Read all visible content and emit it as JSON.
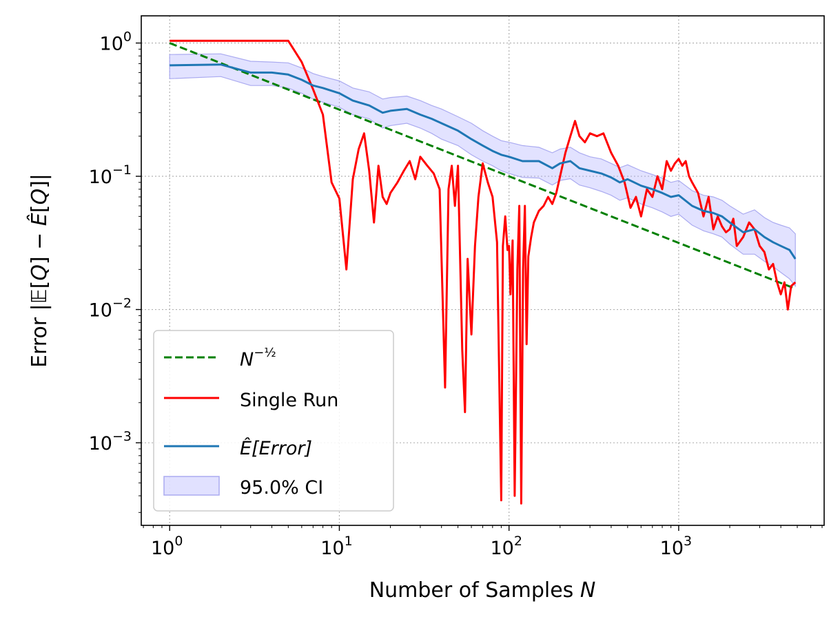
{
  "chart_data": {
    "type": "line",
    "xlabel": "Number of Samples N",
    "ylabel": "Error |𝔼[Q] − Ê[Q]|",
    "xscale": "log",
    "yscale": "log",
    "xlim": [
      0.68,
      7200
    ],
    "ylim": [
      0.00024,
      1.6
    ],
    "grid": true,
    "legend_placement": "lower-left",
    "x_ticks": [
      {
        "base": "10",
        "exp": "0"
      },
      {
        "base": "10",
        "exp": "1"
      },
      {
        "base": "10",
        "exp": "2"
      },
      {
        "base": "10",
        "exp": "3"
      }
    ],
    "y_ticks": [
      {
        "base": "10",
        "exp": "−3"
      },
      {
        "base": "10",
        "exp": "−2"
      },
      {
        "base": "10",
        "exp": "−1"
      },
      {
        "base": "10",
        "exp": "0"
      }
    ],
    "series": [
      {
        "name": "N^(-1/2)",
        "legend_base": "N",
        "legend_exp": "−½",
        "color": "#008000",
        "style": "dashed",
        "x": [
          1,
          4870
        ],
        "y": [
          1.0,
          0.01433
        ]
      },
      {
        "name": "Single Run",
        "color": "#ff0000",
        "style": "solid",
        "x": [
          1,
          2,
          5,
          6,
          7,
          8,
          9,
          10,
          11,
          12,
          13,
          14,
          15,
          16,
          17,
          18,
          19,
          20,
          22,
          24,
          26,
          28,
          30,
          33,
          36,
          39,
          42,
          44,
          46,
          48,
          50,
          53,
          55,
          57,
          60,
          63,
          66,
          70,
          75,
          80,
          85,
          90,
          92,
          95,
          98,
          100,
          102,
          105,
          108,
          112,
          115,
          118,
          121,
          124,
          127,
          130,
          135,
          140,
          150,
          160,
          170,
          180,
          190,
          200,
          215,
          230,
          245,
          260,
          280,
          300,
          330,
          360,
          400,
          440,
          480,
          520,
          560,
          600,
          650,
          700,
          750,
          800,
          850,
          900,
          950,
          1000,
          1050,
          1100,
          1150,
          1200,
          1300,
          1400,
          1500,
          1600,
          1700,
          1800,
          1900,
          2000,
          2100,
          2200,
          2400,
          2600,
          2800,
          3000,
          3200,
          3400,
          3600,
          3800,
          4000,
          4200,
          4400,
          4600,
          4870
        ],
        "y": [
          1.04,
          1.04,
          1.04,
          0.72,
          0.45,
          0.29,
          0.09,
          0.068,
          0.02,
          0.095,
          0.16,
          0.21,
          0.11,
          0.045,
          0.12,
          0.07,
          0.062,
          0.075,
          0.09,
          0.11,
          0.13,
          0.095,
          0.14,
          0.12,
          0.105,
          0.08,
          0.0026,
          0.08,
          0.12,
          0.06,
          0.12,
          0.005,
          0.0017,
          0.024,
          0.0065,
          0.03,
          0.07,
          0.125,
          0.09,
          0.07,
          0.032,
          0.00037,
          0.03,
          0.05,
          0.028,
          0.03,
          0.013,
          0.033,
          0.0004,
          0.02,
          0.06,
          0.00035,
          0.02,
          0.06,
          0.0055,
          0.025,
          0.035,
          0.045,
          0.055,
          0.06,
          0.07,
          0.062,
          0.075,
          0.1,
          0.15,
          0.2,
          0.26,
          0.2,
          0.18,
          0.21,
          0.2,
          0.21,
          0.15,
          0.12,
          0.09,
          0.058,
          0.07,
          0.05,
          0.08,
          0.07,
          0.1,
          0.08,
          0.13,
          0.11,
          0.125,
          0.135,
          0.12,
          0.13,
          0.1,
          0.09,
          0.075,
          0.05,
          0.07,
          0.04,
          0.05,
          0.042,
          0.038,
          0.04,
          0.048,
          0.03,
          0.035,
          0.045,
          0.04,
          0.03,
          0.027,
          0.02,
          0.022,
          0.016,
          0.013,
          0.016,
          0.01,
          0.015,
          0.016
        ]
      },
      {
        "name": "Ê[Error]",
        "legend_text": "Ê[Error]",
        "color": "#1f77b4",
        "style": "solid",
        "x": [
          1,
          2,
          3,
          4,
          5,
          6,
          7,
          8,
          10,
          12,
          15,
          18,
          20,
          25,
          30,
          35,
          40,
          50,
          60,
          70,
          80,
          90,
          100,
          120,
          150,
          180,
          200,
          230,
          260,
          300,
          350,
          400,
          450,
          500,
          600,
          700,
          800,
          900,
          1000,
          1200,
          1400,
          1600,
          1800,
          2000,
          2400,
          2800,
          3200,
          3600,
          4000,
          4500,
          4870
        ],
        "y": [
          0.68,
          0.69,
          0.6,
          0.6,
          0.58,
          0.53,
          0.48,
          0.46,
          0.42,
          0.37,
          0.34,
          0.3,
          0.31,
          0.32,
          0.29,
          0.27,
          0.25,
          0.22,
          0.19,
          0.17,
          0.155,
          0.145,
          0.14,
          0.13,
          0.13,
          0.115,
          0.125,
          0.13,
          0.115,
          0.11,
          0.105,
          0.098,
          0.09,
          0.095,
          0.085,
          0.08,
          0.075,
          0.07,
          0.072,
          0.06,
          0.055,
          0.053,
          0.05,
          0.045,
          0.038,
          0.04,
          0.035,
          0.032,
          0.03,
          0.028,
          0.024
        ]
      }
    ],
    "ci_band": {
      "name": "95.0% CI",
      "fill_color": "#b4b4ff",
      "edge_color": "#aaaaf0",
      "x": [
        1,
        2,
        3,
        4,
        5,
        6,
        7,
        8,
        10,
        12,
        15,
        18,
        20,
        25,
        30,
        35,
        40,
        50,
        60,
        70,
        80,
        90,
        100,
        120,
        150,
        180,
        200,
        230,
        260,
        300,
        350,
        400,
        450,
        500,
        600,
        700,
        800,
        900,
        1000,
        1200,
        1400,
        1600,
        1800,
        2000,
        2400,
        2800,
        3200,
        3600,
        4000,
        4500,
        4870
      ],
      "lower": [
        0.54,
        0.56,
        0.48,
        0.48,
        0.46,
        0.42,
        0.38,
        0.36,
        0.33,
        0.29,
        0.27,
        0.23,
        0.24,
        0.25,
        0.23,
        0.21,
        0.19,
        0.17,
        0.145,
        0.13,
        0.12,
        0.11,
        0.105,
        0.098,
        0.097,
        0.086,
        0.093,
        0.096,
        0.086,
        0.082,
        0.077,
        0.072,
        0.066,
        0.069,
        0.062,
        0.058,
        0.054,
        0.05,
        0.052,
        0.043,
        0.039,
        0.037,
        0.035,
        0.031,
        0.026,
        0.026,
        0.023,
        0.021,
        0.019,
        0.017,
        0.015
      ],
      "upper": [
        0.82,
        0.83,
        0.73,
        0.72,
        0.71,
        0.65,
        0.59,
        0.56,
        0.52,
        0.46,
        0.43,
        0.38,
        0.39,
        0.4,
        0.37,
        0.34,
        0.32,
        0.28,
        0.25,
        0.22,
        0.2,
        0.185,
        0.18,
        0.17,
        0.165,
        0.15,
        0.16,
        0.165,
        0.15,
        0.14,
        0.135,
        0.125,
        0.116,
        0.122,
        0.11,
        0.103,
        0.097,
        0.09,
        0.093,
        0.078,
        0.072,
        0.07,
        0.066,
        0.06,
        0.052,
        0.056,
        0.049,
        0.045,
        0.043,
        0.041,
        0.037
      ]
    },
    "legend_items": [
      {
        "label_base": "N",
        "label_exp": "−½"
      },
      {
        "label": "Single Run"
      },
      {
        "label": "Ê[Error]"
      },
      {
        "label": "95.0% CI"
      }
    ]
  }
}
